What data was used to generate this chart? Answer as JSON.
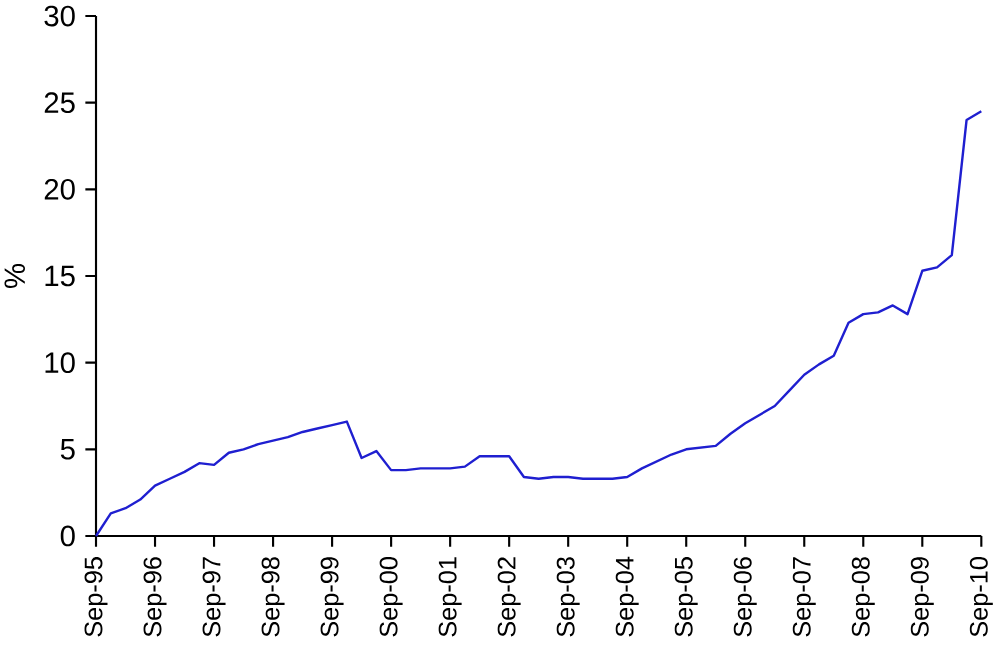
{
  "chart_data": {
    "type": "line",
    "ylabel": "%",
    "x": [
      "1995-09",
      "1995-12",
      "1996-03",
      "1996-06",
      "1996-09",
      "1996-12",
      "1997-03",
      "1997-06",
      "1997-09",
      "1997-12",
      "1998-03",
      "1998-06",
      "1998-09",
      "1998-12",
      "1999-03",
      "1999-06",
      "1999-09",
      "1999-12",
      "2000-03",
      "2000-06",
      "2000-09",
      "2000-12",
      "2001-03",
      "2001-06",
      "2001-09",
      "2001-12",
      "2002-03",
      "2002-06",
      "2002-09",
      "2002-12",
      "2003-03",
      "2003-06",
      "2003-09",
      "2003-12",
      "2004-03",
      "2004-06",
      "2004-09",
      "2004-12",
      "2005-03",
      "2005-06",
      "2005-09",
      "2005-12",
      "2006-03",
      "2006-06",
      "2006-09",
      "2006-12",
      "2007-03",
      "2007-06",
      "2007-09",
      "2007-12",
      "2008-03",
      "2008-06",
      "2008-09",
      "2008-12",
      "2009-03",
      "2009-06",
      "2009-09",
      "2009-12",
      "2010-03",
      "2010-06",
      "2010-09"
    ],
    "series": [
      {
        "color": "#1f1fd0",
        "values": [
          0,
          1.3,
          1.6,
          2.1,
          2.9,
          3.3,
          3.7,
          4.2,
          4.1,
          4.8,
          5.0,
          5.3,
          5.5,
          5.7,
          6.0,
          6.2,
          6.4,
          6.6,
          4.5,
          4.9,
          3.8,
          3.8,
          3.9,
          3.9,
          3.9,
          4.0,
          4.6,
          4.6,
          4.6,
          3.4,
          3.3,
          3.4,
          3.4,
          3.3,
          3.3,
          3.3,
          3.4,
          3.9,
          4.3,
          4.7,
          5.0,
          5.1,
          5.2,
          5.9,
          6.5,
          7.0,
          7.5,
          8.4,
          9.3,
          9.9,
          10.4,
          12.3,
          12.8,
          12.9,
          13.3,
          12.8,
          15.3,
          15.5,
          16.2,
          24.0,
          24.5
        ]
      }
    ],
    "xlim": [
      "1995-09",
      "2010-09"
    ],
    "xticks": [
      {
        "value": "1995-09",
        "label": "Sep-95"
      },
      {
        "value": "1996-09",
        "label": "Sep-96"
      },
      {
        "value": "1997-09",
        "label": "Sep-97"
      },
      {
        "value": "1998-09",
        "label": "Sep-98"
      },
      {
        "value": "1999-09",
        "label": "Sep-99"
      },
      {
        "value": "2000-09",
        "label": "Sep-00"
      },
      {
        "value": "2001-09",
        "label": "Sep-01"
      },
      {
        "value": "2002-09",
        "label": "Sep-02"
      },
      {
        "value": "2003-09",
        "label": "Sep-03"
      },
      {
        "value": "2004-09",
        "label": "Sep-04"
      },
      {
        "value": "2005-09",
        "label": "Sep-05"
      },
      {
        "value": "2006-09",
        "label": "Sep-06"
      },
      {
        "value": "2007-09",
        "label": "Sep-07"
      },
      {
        "value": "2008-09",
        "label": "Sep-08"
      },
      {
        "value": "2009-09",
        "label": "Sep-09"
      },
      {
        "value": "2010-09",
        "label": "Sep-10"
      }
    ],
    "ylim": [
      0,
      30
    ],
    "yticks": [
      0,
      5,
      10,
      15,
      20,
      25,
      30
    ]
  }
}
